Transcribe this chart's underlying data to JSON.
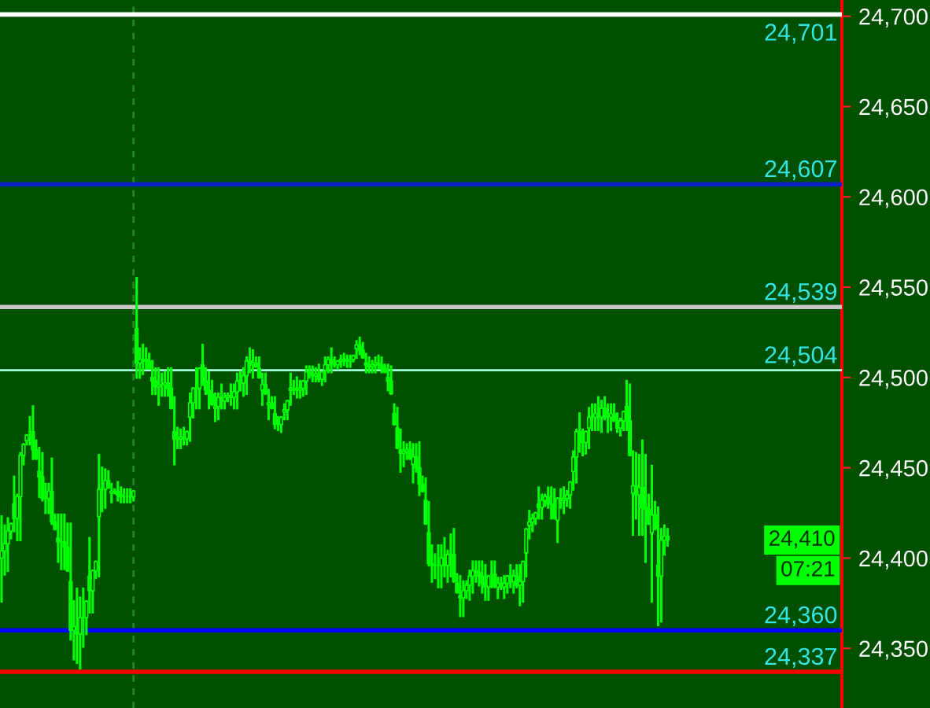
{
  "chart_data": {
    "type": "candlestick",
    "categories": [
      null,
      null,
      null,
      null,
      null,
      null,
      null,
      null,
      null,
      null,
      null,
      null,
      null,
      null,
      null,
      null,
      null,
      null,
      null,
      null,
      null,
      null,
      null,
      null,
      null,
      null,
      null,
      null,
      null,
      null,
      null,
      null,
      null,
      null,
      null,
      null,
      null,
      null,
      null,
      null,
      null,
      null,
      null,
      null,
      null,
      null,
      null,
      null,
      null,
      null,
      null,
      null,
      null,
      null,
      null,
      null,
      null,
      null,
      null,
      null,
      null,
      null,
      null,
      null,
      null,
      null,
      null,
      null,
      null,
      null,
      null,
      null,
      null,
      null,
      null,
      null,
      null,
      null,
      null,
      null,
      null,
      null,
      null,
      null,
      null,
      null,
      null,
      null,
      null,
      null,
      null,
      null,
      null,
      null,
      null,
      null,
      null,
      null,
      null,
      null,
      null,
      null,
      null,
      null,
      null,
      null,
      null,
      null,
      null,
      null,
      null,
      null,
      null,
      null,
      null,
      null,
      null,
      null,
      null,
      null,
      null,
      null,
      null,
      null,
      null,
      null,
      null,
      null,
      null,
      null,
      null,
      null,
      null,
      null,
      null,
      null,
      null,
      null,
      null,
      null,
      null,
      null,
      null,
      null,
      null,
      null,
      null,
      null,
      null,
      null,
      null,
      null,
      null,
      null,
      null,
      null,
      null,
      null,
      null,
      null,
      null,
      null,
      null,
      null,
      null,
      null,
      null,
      null,
      null,
      null,
      null,
      null,
      null,
      null,
      null,
      null,
      null,
      null,
      null,
      null,
      null,
      null,
      null,
      null,
      null,
      null,
      null,
      null,
      null,
      null,
      null,
      null,
      null,
      null,
      null,
      null,
      null,
      null,
      null,
      null,
      null,
      null,
      null,
      null,
      null,
      null,
      null,
      null,
      null,
      null,
      null,
      null,
      null,
      null,
      null,
      null,
      null,
      null,
      null,
      null,
      null,
      null,
      null,
      null,
      null,
      null,
      null,
      null,
      null,
      null,
      null,
      null,
      null,
      null,
      null,
      null,
      null,
      null,
      null,
      null,
      null,
      null,
      null,
      null,
      null,
      null,
      null,
      null,
      null,
      null,
      null,
      null,
      null,
      null,
      null,
      null,
      null,
      null,
      null,
      null,
      null,
      null,
      null,
      null,
      null,
      null,
      null,
      null
    ],
    "ohlc": [
      [
        24400,
        24423,
        24376,
        24404
      ],
      [
        24404,
        24418,
        24391,
        24408
      ],
      [
        24408,
        24422,
        24393,
        24415
      ],
      [
        24415,
        24419,
        24411,
        24419
      ],
      [
        24430,
        24445,
        24415,
        24422
      ],
      [
        24422,
        24435,
        24410,
        24434
      ],
      [
        24434,
        24458,
        24410,
        24457
      ],
      [
        24457,
        24463,
        24452,
        24463
      ],
      [
        24465,
        24468,
        24463,
        24468
      ],
      [
        24470,
        24478,
        24463,
        24470
      ],
      [
        24470,
        24484,
        24455,
        24460
      ],
      [
        24460,
        24465,
        24455,
        24455
      ],
      [
        24448,
        24461,
        24434,
        24445
      ],
      [
        24445,
        24458,
        24432,
        24433
      ],
      [
        24433,
        24441,
        24425,
        24433
      ],
      [
        24433,
        24441,
        24425,
        24437
      ],
      [
        24437,
        24455,
        24419,
        24420
      ],
      [
        24420,
        24424,
        24416,
        24416
      ],
      [
        24411,
        24424,
        24398,
        24409
      ],
      [
        24409,
        24424,
        24394,
        24409
      ],
      [
        24409,
        24424,
        24394,
        24406
      ],
      [
        24406,
        24419,
        24393,
        24393
      ],
      [
        24387,
        24419,
        24355,
        24360
      ],
      [
        24360,
        24376,
        24344,
        24362
      ],
      [
        24362,
        24383,
        24342,
        24358
      ],
      [
        24358,
        24378,
        24339,
        24367
      ],
      [
        24367,
        24383,
        24351,
        24367
      ],
      [
        24367,
        24376,
        24358,
        24376
      ],
      [
        24390,
        24411,
        24370,
        24382
      ],
      [
        24382,
        24393,
        24370,
        24393
      ],
      [
        24393,
        24398,
        24389,
        24398
      ],
      [
        24423,
        24457,
        24390,
        24438
      ],
      [
        24438,
        24450,
        24426,
        24438
      ],
      [
        24438,
        24449,
        24428,
        24443
      ],
      [
        24443,
        24448,
        24439,
        24439
      ],
      [
        24436,
        24441,
        24431,
        24437
      ],
      [
        24437,
        24438,
        24436,
        24437
      ],
      [
        24437,
        24442,
        24432,
        24435
      ],
      [
        24435,
        24439,
        24431,
        24434
      ],
      [
        24434,
        24438,
        24431,
        24434
      ],
      [
        24434,
        24438,
        24431,
        24434
      ],
      [
        24434,
        24438,
        24431,
        24434
      ],
      [
        24434,
        24437,
        24432,
        24437
      ],
      [
        24527,
        24555,
        24500,
        24508
      ],
      [
        24508,
        24516,
        24500,
        24510
      ],
      [
        24510,
        24518,
        24502,
        24510
      ],
      [
        24510,
        24516,
        24505,
        24509
      ],
      [
        24509,
        24513,
        24505,
        24505
      ],
      [
        24500,
        24509,
        24491,
        24498
      ],
      [
        24498,
        24505,
        24491,
        24495
      ],
      [
        24495,
        24505,
        24485,
        24496
      ],
      [
        24496,
        24502,
        24490,
        24496
      ],
      [
        24496,
        24503,
        24490,
        24497
      ],
      [
        24497,
        24505,
        24490,
        24494
      ],
      [
        24494,
        24505,
        24483,
        24483
      ],
      [
        24470,
        24489,
        24452,
        24466
      ],
      [
        24466,
        24472,
        24461,
        24466
      ],
      [
        24466,
        24471,
        24461,
        24467
      ],
      [
        24467,
        24472,
        24463,
        24466
      ],
      [
        24466,
        24470,
        24463,
        24470
      ],
      [
        24478,
        24491,
        24465,
        24486
      ],
      [
        24486,
        24494,
        24478,
        24494
      ],
      [
        24494,
        24505,
        24483,
        24494
      ],
      [
        24494,
        24505,
        24483,
        24505
      ],
      [
        24507,
        24518,
        24496,
        24498
      ],
      [
        24498,
        24505,
        24491,
        24493
      ],
      [
        24493,
        24503,
        24483,
        24491
      ],
      [
        24491,
        24498,
        24485,
        24485
      ],
      [
        24483,
        24491,
        24476,
        24484
      ],
      [
        24484,
        24491,
        24477,
        24489
      ],
      [
        24489,
        24496,
        24483,
        24487
      ],
      [
        24487,
        24491,
        24483,
        24489
      ],
      [
        24489,
        24491,
        24487,
        24490
      ],
      [
        24490,
        24496,
        24485,
        24489
      ],
      [
        24489,
        24496,
        24483,
        24492
      ],
      [
        24492,
        24502,
        24483,
        24498
      ],
      [
        24498,
        24503,
        24493,
        24497
      ],
      [
        24497,
        24505,
        24490,
        24501
      ],
      [
        24501,
        24511,
        24491,
        24509
      ],
      [
        24509,
        24516,
        24503,
        24507
      ],
      [
        24507,
        24515,
        24500,
        24508
      ],
      [
        24508,
        24511,
        24506,
        24506
      ],
      [
        24505,
        24511,
        24500,
        24500
      ],
      [
        24493,
        24502,
        24485,
        24496
      ],
      [
        24496,
        24502,
        24491,
        24491
      ],
      [
        24485,
        24493,
        24477,
        24486
      ],
      [
        24486,
        24489,
        24483,
        24483
      ],
      [
        24480,
        24489,
        24472,
        24474
      ],
      [
        24474,
        24478,
        24471,
        24474
      ],
      [
        24474,
        24478,
        24470,
        24478
      ],
      [
        24481,
        24485,
        24477,
        24482
      ],
      [
        24482,
        24487,
        24477,
        24487
      ],
      [
        24493,
        24502,
        24485,
        24494
      ],
      [
        24494,
        24498,
        24491,
        24494
      ],
      [
        24494,
        24500,
        24489,
        24493
      ],
      [
        24493,
        24498,
        24489,
        24494
      ],
      [
        24494,
        24498,
        24490,
        24498
      ],
      [
        24498,
        24506,
        24491,
        24503
      ],
      [
        24503,
        24506,
        24500,
        24502
      ],
      [
        24502,
        24506,
        24498,
        24501
      ],
      [
        24501,
        24505,
        24498,
        24502
      ],
      [
        24502,
        24507,
        24498,
        24499
      ],
      [
        24499,
        24503,
        24496,
        24503
      ],
      [
        24504,
        24511,
        24498,
        24507
      ],
      [
        24507,
        24511,
        24503,
        24510
      ],
      [
        24510,
        24516,
        24503,
        24508
      ],
      [
        24508,
        24511,
        24506,
        24507
      ],
      [
        24507,
        24509,
        24505,
        24509
      ],
      [
        24509,
        24512,
        24506,
        24510
      ],
      [
        24510,
        24513,
        24507,
        24509
      ],
      [
        24509,
        24512,
        24506,
        24509
      ],
      [
        24509,
        24512,
        24506,
        24510
      ],
      [
        24510,
        24512,
        24509,
        24512
      ],
      [
        24516,
        24520,
        24511,
        24518
      ],
      [
        24518,
        24522,
        24513,
        24515
      ],
      [
        24515,
        24519,
        24511,
        24511
      ],
      [
        24508,
        24513,
        24503,
        24507
      ],
      [
        24507,
        24511,
        24503,
        24506
      ],
      [
        24506,
        24509,
        24503,
        24507
      ],
      [
        24507,
        24511,
        24503,
        24508
      ],
      [
        24508,
        24512,
        24505,
        24507
      ],
      [
        24507,
        24511,
        24503,
        24505
      ],
      [
        24505,
        24507,
        24503,
        24503
      ],
      [
        24500,
        24507,
        24493,
        24498
      ],
      [
        24498,
        24506,
        24491,
        24491
      ],
      [
        24480,
        24485,
        24474,
        24474
      ],
      [
        24472,
        24483,
        24461,
        24461
      ],
      [
        24460,
        24471,
        24448,
        24458
      ],
      [
        24458,
        24464,
        24451,
        24459
      ],
      [
        24459,
        24463,
        24455,
        24460
      ],
      [
        24460,
        24464,
        24455,
        24455
      ],
      [
        24452,
        24463,
        24442,
        24456
      ],
      [
        24456,
        24463,
        24448,
        24450
      ],
      [
        24450,
        24464,
        24435,
        24441
      ],
      [
        24441,
        24445,
        24437,
        24437
      ],
      [
        24432,
        24444,
        24419,
        24419
      ],
      [
        24414,
        24431,
        24396,
        24397
      ],
      [
        24397,
        24407,
        24387,
        24396
      ],
      [
        24396,
        24402,
        24389,
        24396
      ],
      [
        24396,
        24407,
        24384,
        24396
      ],
      [
        24396,
        24407,
        24384,
        24400
      ],
      [
        24400,
        24411,
        24390,
        24396
      ],
      [
        24396,
        24404,
        24387,
        24402
      ],
      [
        24402,
        24413,
        24390,
        24402
      ],
      [
        24402,
        24416,
        24387,
        24387
      ],
      [
        24386,
        24391,
        24381,
        24381
      ],
      [
        24379,
        24390,
        24368,
        24378
      ],
      [
        24378,
        24387,
        24368,
        24382
      ],
      [
        24382,
        24387,
        24378,
        24385
      ],
      [
        24385,
        24393,
        24377,
        24390
      ],
      [
        24390,
        24398,
        24381,
        24393
      ],
      [
        24393,
        24398,
        24387,
        24392
      ],
      [
        24392,
        24398,
        24385,
        24390
      ],
      [
        24390,
        24398,
        24381,
        24386
      ],
      [
        24386,
        24396,
        24377,
        24384
      ],
      [
        24384,
        24390,
        24377,
        24390
      ],
      [
        24391,
        24398,
        24384,
        24391
      ],
      [
        24391,
        24398,
        24384,
        24384
      ],
      [
        24384,
        24389,
        24378,
        24386
      ],
      [
        24386,
        24389,
        24383,
        24384
      ],
      [
        24384,
        24390,
        24378,
        24386
      ],
      [
        24386,
        24390,
        24381,
        24390
      ],
      [
        24390,
        24396,
        24384,
        24387
      ],
      [
        24387,
        24393,
        24381,
        24390
      ],
      [
        24390,
        24396,
        24384,
        24385
      ],
      [
        24385,
        24396,
        24374,
        24387
      ],
      [
        24387,
        24398,
        24376,
        24398
      ],
      [
        24403,
        24416,
        24390,
        24416
      ],
      [
        24418,
        24426,
        24411,
        24420
      ],
      [
        24420,
        24424,
        24415,
        24422
      ],
      [
        24422,
        24425,
        24419,
        24425
      ],
      [
        24430,
        24439,
        24422,
        24428
      ],
      [
        24428,
        24435,
        24422,
        24432
      ],
      [
        24432,
        24435,
        24429,
        24434
      ],
      [
        24434,
        24439,
        24428,
        24430
      ],
      [
        24430,
        24439,
        24422,
        24430
      ],
      [
        24430,
        24438,
        24422,
        24422
      ],
      [
        24421,
        24433,
        24409,
        24433
      ],
      [
        24433,
        24438,
        24428,
        24432
      ],
      [
        24432,
        24439,
        24425,
        24433
      ],
      [
        24433,
        24437,
        24429,
        24435
      ],
      [
        24435,
        24442,
        24428,
        24442
      ],
      [
        24448,
        24459,
        24438,
        24456
      ],
      [
        24456,
        24471,
        24442,
        24470
      ],
      [
        24470,
        24480,
        24459,
        24464
      ],
      [
        24464,
        24471,
        24457,
        24464
      ],
      [
        24464,
        24470,
        24458,
        24470
      ],
      [
        24472,
        24483,
        24461,
        24478
      ],
      [
        24478,
        24485,
        24471,
        24478
      ],
      [
        24478,
        24485,
        24471,
        24480
      ],
      [
        24480,
        24489,
        24471,
        24478
      ],
      [
        24478,
        24487,
        24470,
        24483
      ],
      [
        24483,
        24489,
        24477,
        24478
      ],
      [
        24478,
        24485,
        24470,
        24478
      ],
      [
        24478,
        24485,
        24471,
        24480
      ],
      [
        24480,
        24485,
        24476,
        24476
      ],
      [
        24475,
        24480,
        24470,
        24472
      ],
      [
        24472,
        24477,
        24468,
        24476
      ],
      [
        24476,
        24481,
        24471,
        24481
      ],
      [
        24484,
        24498,
        24471,
        24476
      ],
      [
        24476,
        24496,
        24457,
        24457
      ],
      [
        24436,
        24459,
        24413,
        24440
      ],
      [
        24440,
        24458,
        24422,
        24435
      ],
      [
        24435,
        24457,
        24413,
        24439
      ],
      [
        24439,
        24465,
        24413,
        24428
      ],
      [
        24428,
        24457,
        24398,
        24427
      ],
      [
        24427,
        24435,
        24419,
        24419
      ],
      [
        24414,
        24451,
        24376,
        24424
      ],
      [
        24424,
        24431,
        24416,
        24416
      ],
      [
        24396,
        24428,
        24363,
        24390
      ],
      [
        24390,
        24416,
        24365,
        24410
      ],
      [
        24410,
        24418,
        24402,
        24412
      ],
      [
        24412,
        24416,
        24407,
        24410
      ],
      null,
      null,
      null,
      null,
      null,
      null,
      null,
      null,
      null,
      null,
      null,
      null,
      null,
      null,
      null,
      null,
      null,
      null,
      null,
      null,
      null,
      null,
      null,
      null,
      null,
      null,
      null,
      null,
      null,
      null,
      null,
      null,
      null,
      null,
      null,
      null,
      null,
      null,
      null,
      null,
      null,
      null,
      null,
      null,
      null,
      null,
      null,
      null,
      null,
      null,
      null,
      null,
      null,
      null,
      null
    ],
    "color": "#00ff00",
    "ylim": [
      24317,
      24709
    ],
    "yticks": [
      {
        "value": 24350,
        "label": "24,350"
      },
      {
        "value": 24400,
        "label": "24,400"
      },
      {
        "value": 24450,
        "label": "24,450"
      },
      {
        "value": 24500,
        "label": "24,500"
      },
      {
        "value": 24550,
        "label": "24,550"
      },
      {
        "value": 24600,
        "label": "24,600"
      },
      {
        "value": 24650,
        "label": "24,650"
      },
      {
        "value": 24700,
        "label": "24,700"
      }
    ],
    "tick_labels": "y",
    "ref_lines": [
      {
        "axis": "y",
        "value": 24701,
        "label": "24,701",
        "color": "#ffffff"
      },
      {
        "axis": "y",
        "value": 24607,
        "label": "24,607",
        "color": "#0a1ec8"
      },
      {
        "axis": "y",
        "value": 24539,
        "label": "24,539",
        "color": "#c8c8c8"
      },
      {
        "axis": "y",
        "value": 24504,
        "label": "24,504",
        "color": "#a0ffd8"
      },
      {
        "axis": "y",
        "value": 24360,
        "label": "24,360",
        "color": "#0000ff"
      },
      {
        "axis": "y",
        "value": 24337,
        "label": "24,337",
        "color": "#ff0000"
      }
    ],
    "annotations": [
      "24,410",
      "07:21"
    ]
  }
}
